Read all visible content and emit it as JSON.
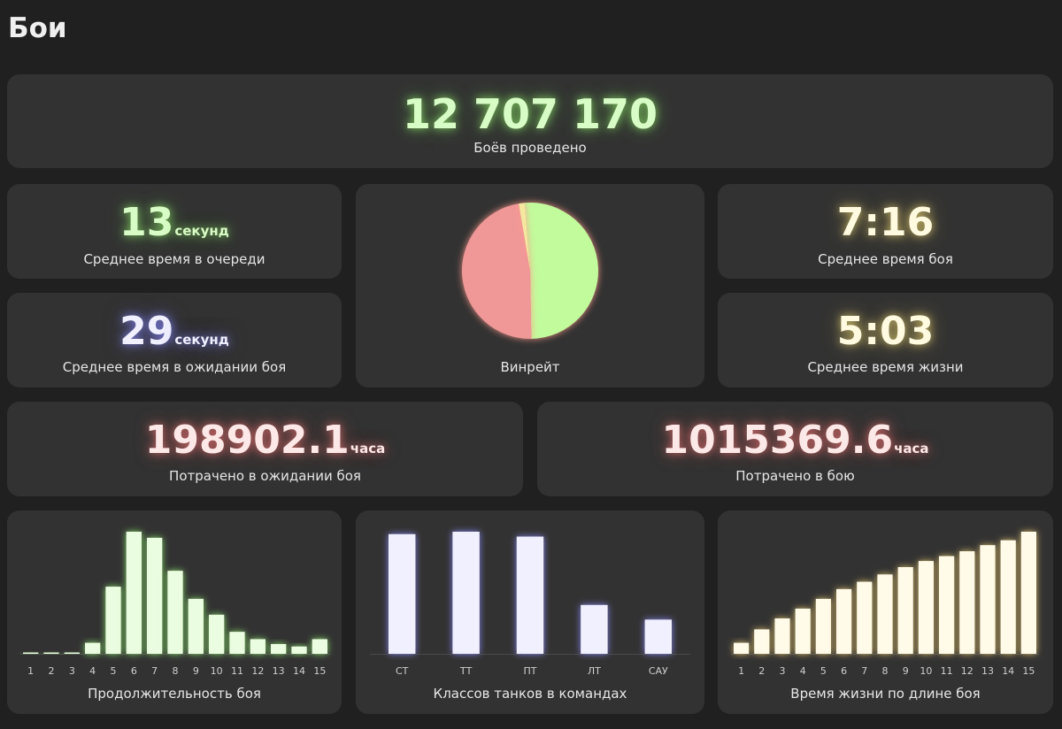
{
  "page": {
    "title": "Бои"
  },
  "total": {
    "value": "12 707 170",
    "label": "Боёв проведено"
  },
  "queue": {
    "value": "13",
    "unit": "секунд",
    "label": "Среднее время в очереди"
  },
  "wait": {
    "value": "29",
    "unit": "секунд",
    "label": "Среднее время в ожидании боя"
  },
  "winrate": {
    "label": "Винрейт"
  },
  "battle_time": {
    "value": "7:16",
    "label": "Среднее время боя"
  },
  "life_time": {
    "value": "5:03",
    "label": "Среднее время жизни"
  },
  "spent_wait": {
    "value": "198902.1",
    "unit": "часа",
    "label": "Потрачено в ожидании боя"
  },
  "spent_battle": {
    "value": "1015369.6",
    "unit": "часа",
    "label": "Потрачено в бою"
  },
  "colors": {
    "green": "#c2fb9c",
    "red": "#f09898",
    "yellow": "#f5e7a0",
    "blue": "#f0f0ff",
    "card": "#323232"
  },
  "chart_data": [
    {
      "id": "winrate",
      "type": "pie",
      "labels": [
        "",
        "",
        ""
      ],
      "values": [
        51.0,
        47.6,
        1.4
      ],
      "colors": [
        "#c2fb9c",
        "#f09898",
        "#f5e7a0"
      ],
      "title": "Винрейт"
    },
    {
      "id": "duration",
      "type": "bar",
      "title": "Продолжительность боя",
      "categories": [
        "1",
        "2",
        "3",
        "4",
        "5",
        "6",
        "7",
        "8",
        "9",
        "10",
        "11",
        "12",
        "13",
        "14",
        "15"
      ],
      "values": [
        0.5,
        0.5,
        0.8,
        9,
        55,
        100,
        95,
        68,
        45,
        32,
        18,
        12,
        8,
        6,
        12
      ],
      "ylim": [
        0,
        100
      ],
      "color": "#ebfde0"
    },
    {
      "id": "classes",
      "type": "bar",
      "title": "Классов танков в командах",
      "categories": [
        "СТ",
        "ТТ",
        "ПТ",
        "ЛТ",
        "САУ"
      ],
      "values": [
        98,
        100,
        96,
        40,
        28
      ],
      "ylim": [
        0,
        100
      ],
      "color": "#f0f0ff"
    },
    {
      "id": "life",
      "type": "bar",
      "title": "Время жизни по длине боя",
      "categories": [
        "1",
        "2",
        "3",
        "4",
        "5",
        "6",
        "7",
        "8",
        "9",
        "10",
        "11",
        "12",
        "13",
        "14",
        "15"
      ],
      "values": [
        9,
        20,
        29,
        37,
        45,
        53,
        59,
        65,
        71,
        76,
        80,
        84,
        89,
        93,
        100
      ],
      "ylim": [
        0,
        100
      ],
      "color": "#fffbe8"
    }
  ]
}
